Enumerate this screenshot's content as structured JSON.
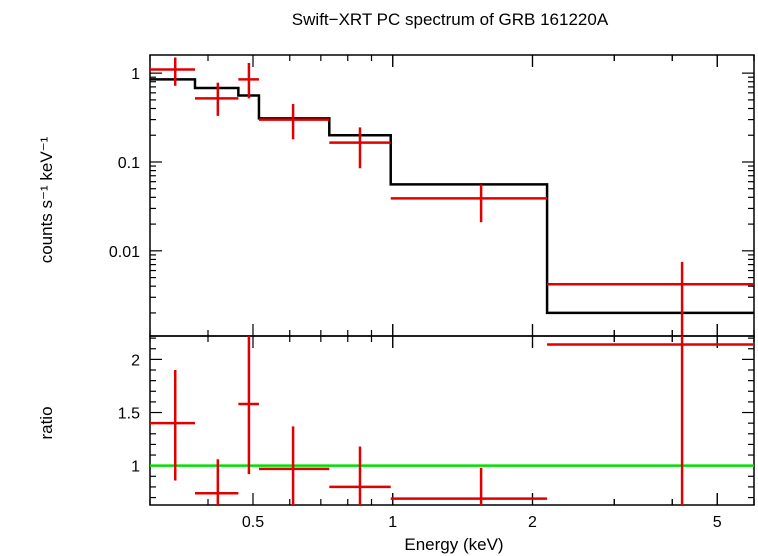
{
  "chart_data": [
    {
      "type": "step",
      "title": "Swift−XRT PC spectrum of GRB 161220A",
      "xlabel": "Energy (keV)",
      "ylabel": "counts s⁻¹ keV⁻¹",
      "xscale": "log",
      "yscale": "log",
      "xlim": [
        0.3,
        6.0
      ],
      "ylim": [
        0.0011,
        1.6
      ],
      "yticks": [
        0.01,
        0.1,
        1
      ],
      "ytick_labels": [
        "0.01",
        "0.1",
        "1"
      ],
      "series": [
        {
          "kind": "data",
          "color": "#e00000",
          "points": [
            {
              "x": 0.34,
              "xlo": 0.3,
              "xhi": 0.375,
              "y": 1.1,
              "ylo": 0.72,
              "yhi": 1.5
            },
            {
              "x": 0.42,
              "xlo": 0.375,
              "xhi": 0.465,
              "y": 0.52,
              "ylo": 0.33,
              "yhi": 0.78
            },
            {
              "x": 0.49,
              "xlo": 0.465,
              "xhi": 0.515,
              "y": 0.85,
              "ylo": 0.52,
              "yhi": 1.3
            },
            {
              "x": 0.61,
              "xlo": 0.515,
              "xhi": 0.73,
              "y": 0.3,
              "ylo": 0.18,
              "yhi": 0.45
            },
            {
              "x": 0.85,
              "xlo": 0.73,
              "xhi": 0.99,
              "y": 0.165,
              "ylo": 0.085,
              "yhi": 0.245
            },
            {
              "x": 1.55,
              "xlo": 0.99,
              "xhi": 2.15,
              "y": 0.039,
              "ylo": 0.021,
              "yhi": 0.056
            },
            {
              "x": 4.2,
              "xlo": 2.15,
              "xhi": 6.0,
              "y": 0.0042,
              "ylo": 0.0011,
              "yhi": 0.0075
            }
          ]
        },
        {
          "kind": "model",
          "color": "#000000",
          "steps": [
            {
              "xlo": 0.3,
              "xhi": 0.375,
              "y": 0.85
            },
            {
              "xlo": 0.375,
              "xhi": 0.465,
              "y": 0.68
            },
            {
              "xlo": 0.465,
              "xhi": 0.515,
              "y": 0.56
            },
            {
              "xlo": 0.515,
              "xhi": 0.73,
              "y": 0.31
            },
            {
              "xlo": 0.73,
              "xhi": 0.99,
              "y": 0.2
            },
            {
              "xlo": 0.99,
              "xhi": 2.15,
              "y": 0.056
            },
            {
              "xlo": 2.15,
              "xhi": 6.0,
              "y": 0.002
            }
          ]
        }
      ]
    },
    {
      "type": "scatter",
      "xlabel": "Energy (keV)",
      "ylabel": "ratio",
      "xscale": "log",
      "xlim": [
        0.3,
        6.0
      ],
      "ylim": [
        0.63,
        2.22
      ],
      "yticks": [
        1,
        1.5,
        2
      ],
      "ytick_labels": [
        "1",
        "1.5",
        "2"
      ],
      "xticks": [
        0.5,
        1,
        2,
        5
      ],
      "xtick_labels": [
        "0.5",
        "1",
        "2",
        "5"
      ],
      "reference_line": {
        "y": 1,
        "color": "#00e000"
      },
      "series": [
        {
          "kind": "ratio",
          "color": "#e00000",
          "points": [
            {
              "x": 0.34,
              "xlo": 0.3,
              "xhi": 0.375,
              "y": 1.4,
              "ylo": 0.86,
              "yhi": 1.9
            },
            {
              "x": 0.42,
              "xlo": 0.375,
              "xhi": 0.465,
              "y": 0.74,
              "ylo": 0.63,
              "yhi": 1.06
            },
            {
              "x": 0.49,
              "xlo": 0.465,
              "xhi": 0.515,
              "y": 1.58,
              "ylo": 0.92,
              "yhi": 2.22
            },
            {
              "x": 0.61,
              "xlo": 0.515,
              "xhi": 0.73,
              "y": 0.97,
              "ylo": 0.63,
              "yhi": 1.37
            },
            {
              "x": 0.85,
              "xlo": 0.73,
              "xhi": 0.99,
              "y": 0.8,
              "ylo": 0.63,
              "yhi": 1.18
            },
            {
              "x": 1.55,
              "xlo": 0.99,
              "xhi": 2.15,
              "y": 0.69,
              "ylo": 0.63,
              "yhi": 0.98
            },
            {
              "x": 4.2,
              "xlo": 2.15,
              "xhi": 6.0,
              "y": 2.14,
              "ylo": 0.63,
              "yhi": 2.22
            }
          ]
        }
      ]
    }
  ]
}
